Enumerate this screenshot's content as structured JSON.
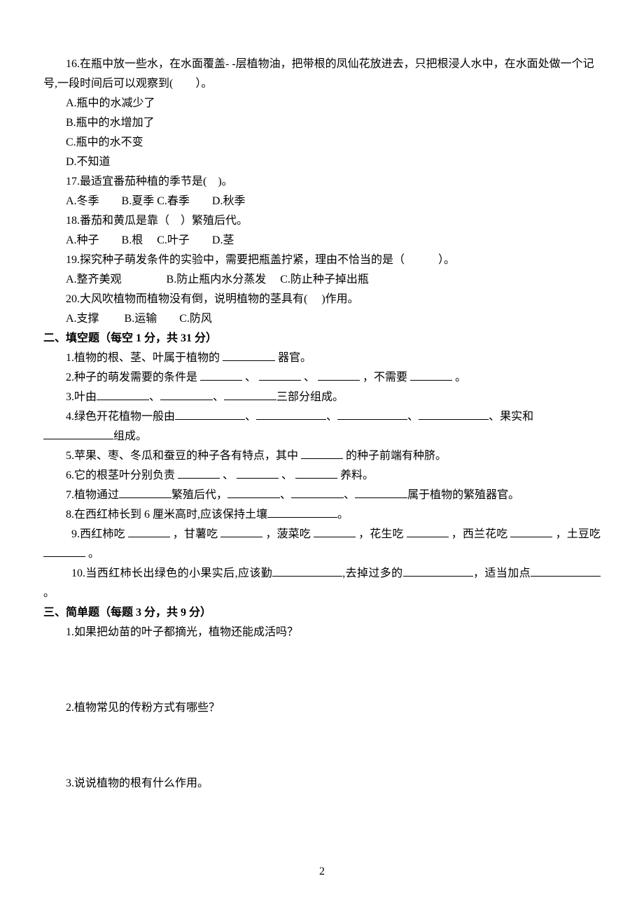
{
  "q16": {
    "text": "16.在瓶中放一些水，在水面覆盖- -层植物油，把带根的凤仙花放进去，只把根浸人水中，在水面处做一个记号,一段时间后可以观察到(　　）。",
    "optA": "A.瓶中的水减少了",
    "optB": "B.瓶中的水增加了",
    "optC": "C.瓶中的水不变",
    "optD": "D.不知道"
  },
  "q17": {
    "text": "17.最适宜番茄种植的季节是(　)。",
    "opts": "A.冬季　　B.夏季 C.春季　　D.秋季"
  },
  "q18": {
    "text": "18.番茄和黄瓜是靠（　）繁殖后代。",
    "opts": "A.种子　　B.根　 C.叶子　　D.茎"
  },
  "q19": {
    "text": "19.探究种子萌发条件的实验中，需要把瓶盖拧紧，理由不恰当的是（　　　）。",
    "opts": "A.整齐美观　　　　B.防止瓶内水分蒸发　 C.防止种子掉出瓶"
  },
  "q20": {
    "text": "20.大风吹植物而植物没有倒，说明植物的茎具有(　 )作用。",
    "opts": "A.支撑　　 B.运输　　C.防风"
  },
  "section2": {
    "header": "二、填空题（每空 1 分，共 31 分）",
    "f1_a": "1.植物的根、茎、叶属于植物的 ",
    "f1_b": " 器官。",
    "f2_a": "2.种子的萌发需要的条件是 ",
    "f2_b": " 、 ",
    "f2_c": " 、 ",
    "f2_d": " ，不需要 ",
    "f2_e": " 。",
    "f3_a": "3.叶由",
    "f3_b": "、",
    "f3_c": "、",
    "f3_d": "三部分组成。",
    "f4_a": "4.绿色开花植物一般由",
    "f4_b": "、",
    "f4_c": "、",
    "f4_d": "、",
    "f4_e": "、果实和",
    "f4_f": "组成。",
    "f5_a": "5.苹果、枣、冬瓜和蚕豆的种子各有特点，其中 ",
    "f5_b": " 的种子前端有种脐。",
    "f6_a": "6.它的根茎叶分别负责 ",
    "f6_b": " 、 ",
    "f6_c": " 、 ",
    "f6_d": " 养料。",
    "f7_a": "7.植物通过",
    "f7_b": "繁殖后代，",
    "f7_c": "、",
    "f7_d": "、",
    "f7_e": "属于植物的繁殖器官。",
    "f8_a": "8.在西红柿长到 6 厘米高时,应该保持土壤",
    "f8_b": "。",
    "f9_a": "9.西红柿吃 ",
    "f9_b": " ，甘薯吃 ",
    "f9_c": " ，菠菜吃 ",
    "f9_d": " ，花生吃 ",
    "f9_e": " ，西兰花吃 ",
    "f9_f": " ，土豆吃 ",
    "f9_g": " 。",
    "f10_a": "10.当西红柿长出绿色的小果实后,应该勤",
    "f10_b": ",去掉过多的",
    "f10_c": "，适当加点",
    "f10_d": "。"
  },
  "section3": {
    "header": "三、简单题（每题 3 分，共 9 分）",
    "q1": "1.如果把幼苗的叶子都摘光，植物还能成活吗？",
    "q2": "2.植物常见的传粉方式有哪些？",
    "q3": "3.说说植物的根有什么作用。"
  },
  "pageNum": "2"
}
